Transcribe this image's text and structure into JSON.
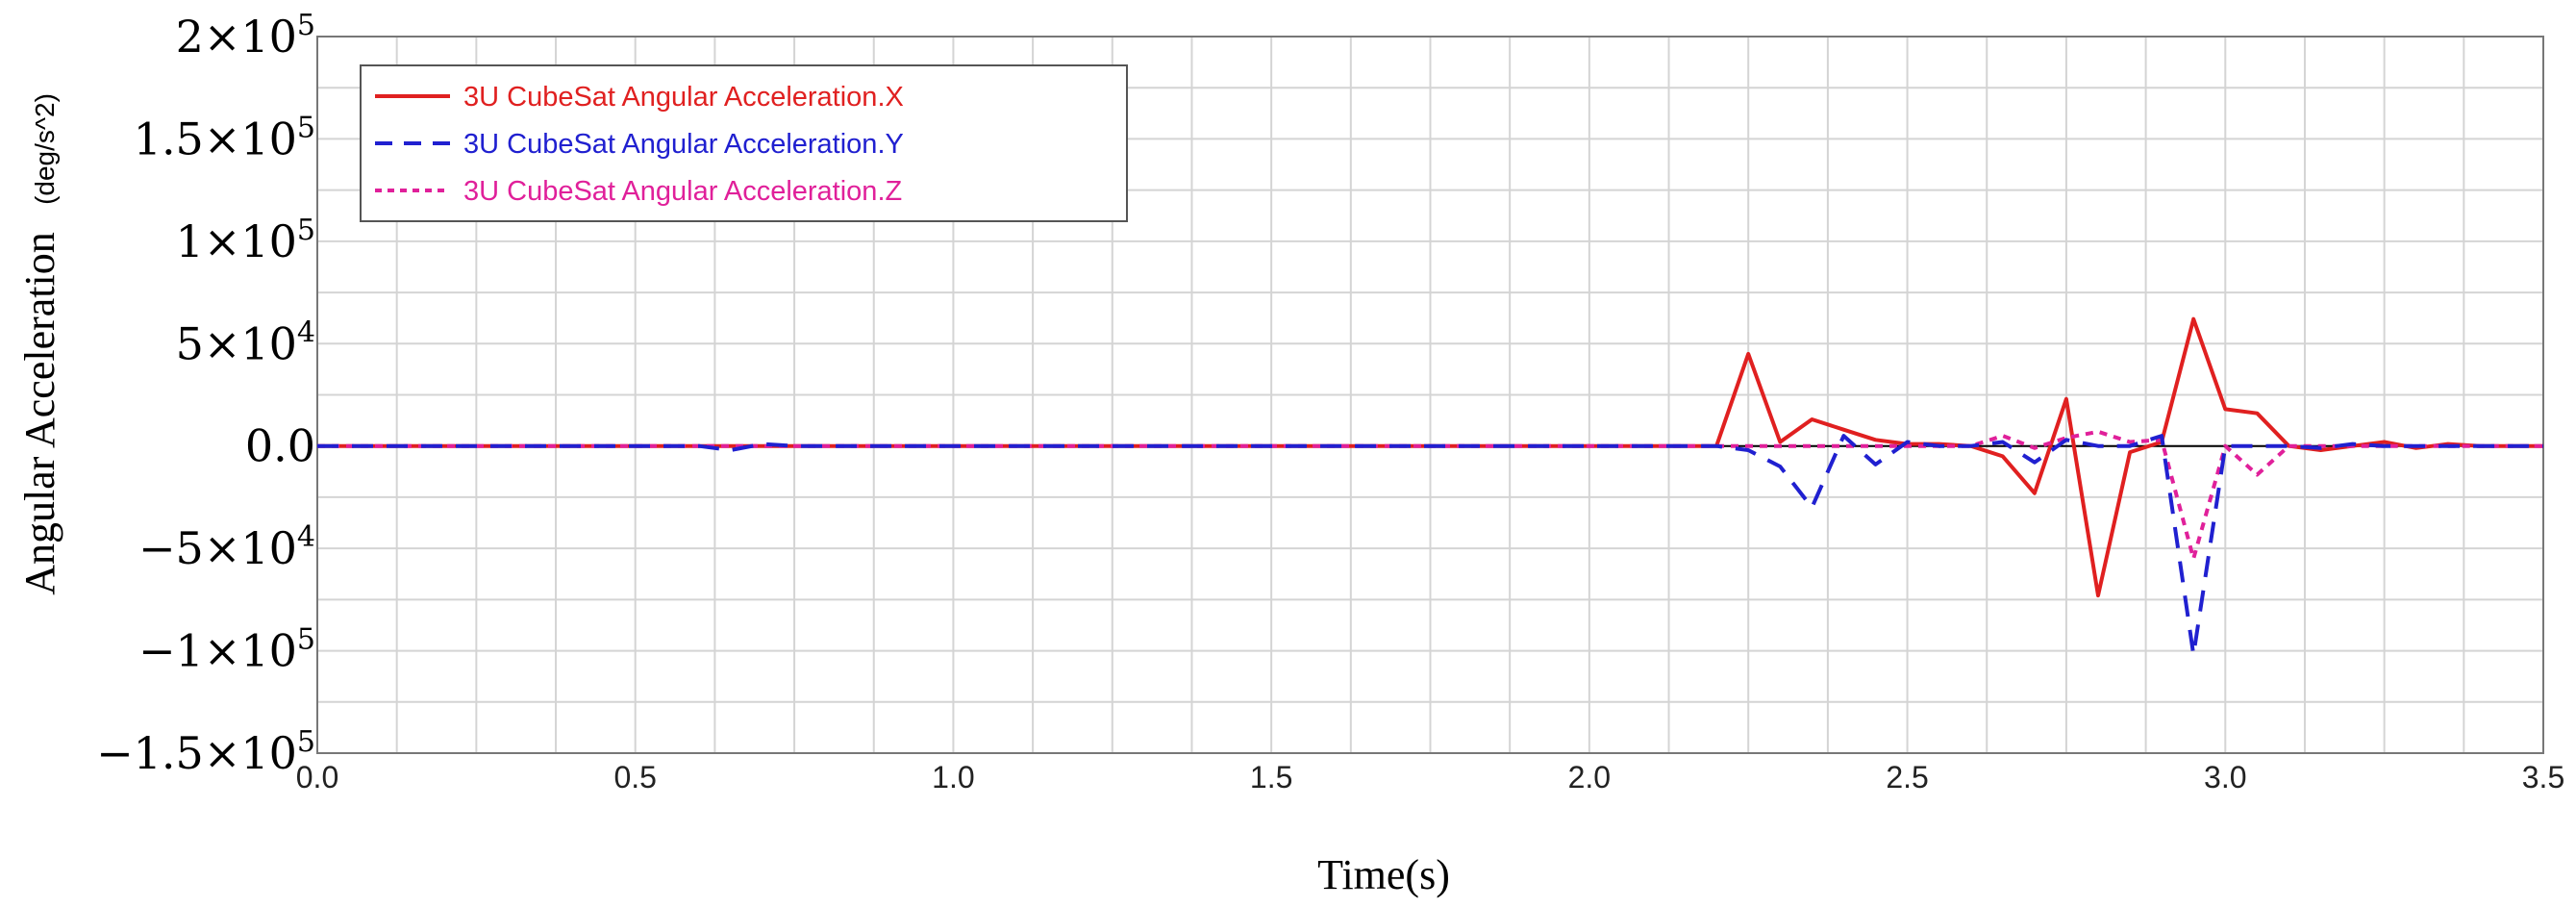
{
  "chart_data": {
    "type": "line",
    "xlabel": "Time(s)",
    "ylabel": "Angular Acceleration",
    "yunit": "(deg/s^2)",
    "xlim": [
      0.0,
      3.5
    ],
    "ylim": [
      -150000,
      200000
    ],
    "grid": true,
    "legend_position": "top-left",
    "x_ticks": [
      "0.0",
      "0.5",
      "1.0",
      "1.5",
      "2.0",
      "2.5",
      "3.0",
      "3.5"
    ],
    "y_ticks": [
      {
        "value": 200000,
        "mant": "2",
        "exp": "5"
      },
      {
        "value": 150000,
        "mant": "1.5",
        "exp": "5"
      },
      {
        "value": 100000,
        "mant": "1",
        "exp": "5"
      },
      {
        "value": 50000,
        "mant": "5",
        "exp": "4"
      },
      {
        "value": 0,
        "mant": "0.0",
        "exp": ""
      },
      {
        "value": -50000,
        "mant": "−5",
        "exp": "4"
      },
      {
        "value": -100000,
        "mant": "−1",
        "exp": "5"
      },
      {
        "value": -150000,
        "mant": "−1.5",
        "exp": "5"
      }
    ],
    "series": [
      {
        "name": "3U CubeSat Angular Acceleration.X",
        "color": "#e02020",
        "dash": "solid",
        "x": [
          0.0,
          2.2,
          2.25,
          2.3,
          2.35,
          2.4,
          2.45,
          2.5,
          2.55,
          2.6,
          2.65,
          2.7,
          2.75,
          2.8,
          2.85,
          2.9,
          2.95,
          3.0,
          3.05,
          3.1,
          3.15,
          3.2,
          3.25,
          3.3,
          3.35,
          3.4,
          3.5
        ],
        "y": [
          0,
          0,
          45000,
          2000,
          13000,
          8000,
          3000,
          1000,
          1000,
          0,
          -5000,
          -23000,
          23000,
          -73000,
          -3000,
          2000,
          62000,
          18000,
          16000,
          0,
          -2000,
          0,
          2000,
          -1000,
          1000,
          0,
          0
        ]
      },
      {
        "name": "3U CubeSat Angular Acceleration.Y",
        "color": "#2020d0",
        "dash": "long",
        "x": [
          0.0,
          0.6,
          0.65,
          0.7,
          0.75,
          2.2,
          2.25,
          2.3,
          2.35,
          2.4,
          2.45,
          2.5,
          2.55,
          2.6,
          2.65,
          2.7,
          2.75,
          2.8,
          2.85,
          2.9,
          2.95,
          3.0,
          3.05,
          3.1,
          3.15,
          3.2,
          3.25,
          3.3,
          3.5
        ],
        "y": [
          0,
          0,
          -2000,
          1000,
          0,
          0,
          -2000,
          -10000,
          -30000,
          5000,
          -9000,
          2000,
          0,
          0,
          2000,
          -8000,
          3000,
          0,
          0,
          5000,
          -102000,
          0,
          0,
          0,
          -1000,
          1000,
          0,
          0,
          0
        ]
      },
      {
        "name": "3U CubeSat Angular Acceleration.Z",
        "color": "#e0209a",
        "dash": "short",
        "x": [
          0.0,
          2.2,
          2.3,
          2.4,
          2.5,
          2.6,
          2.65,
          2.7,
          2.75,
          2.8,
          2.85,
          2.9,
          2.95,
          3.0,
          3.05,
          3.1,
          3.2,
          3.3,
          3.5
        ],
        "y": [
          0,
          0,
          0,
          0,
          0,
          0,
          5000,
          -1000,
          4000,
          7000,
          2000,
          3000,
          -55000,
          0,
          -14000,
          0,
          0,
          0,
          0
        ]
      }
    ]
  }
}
